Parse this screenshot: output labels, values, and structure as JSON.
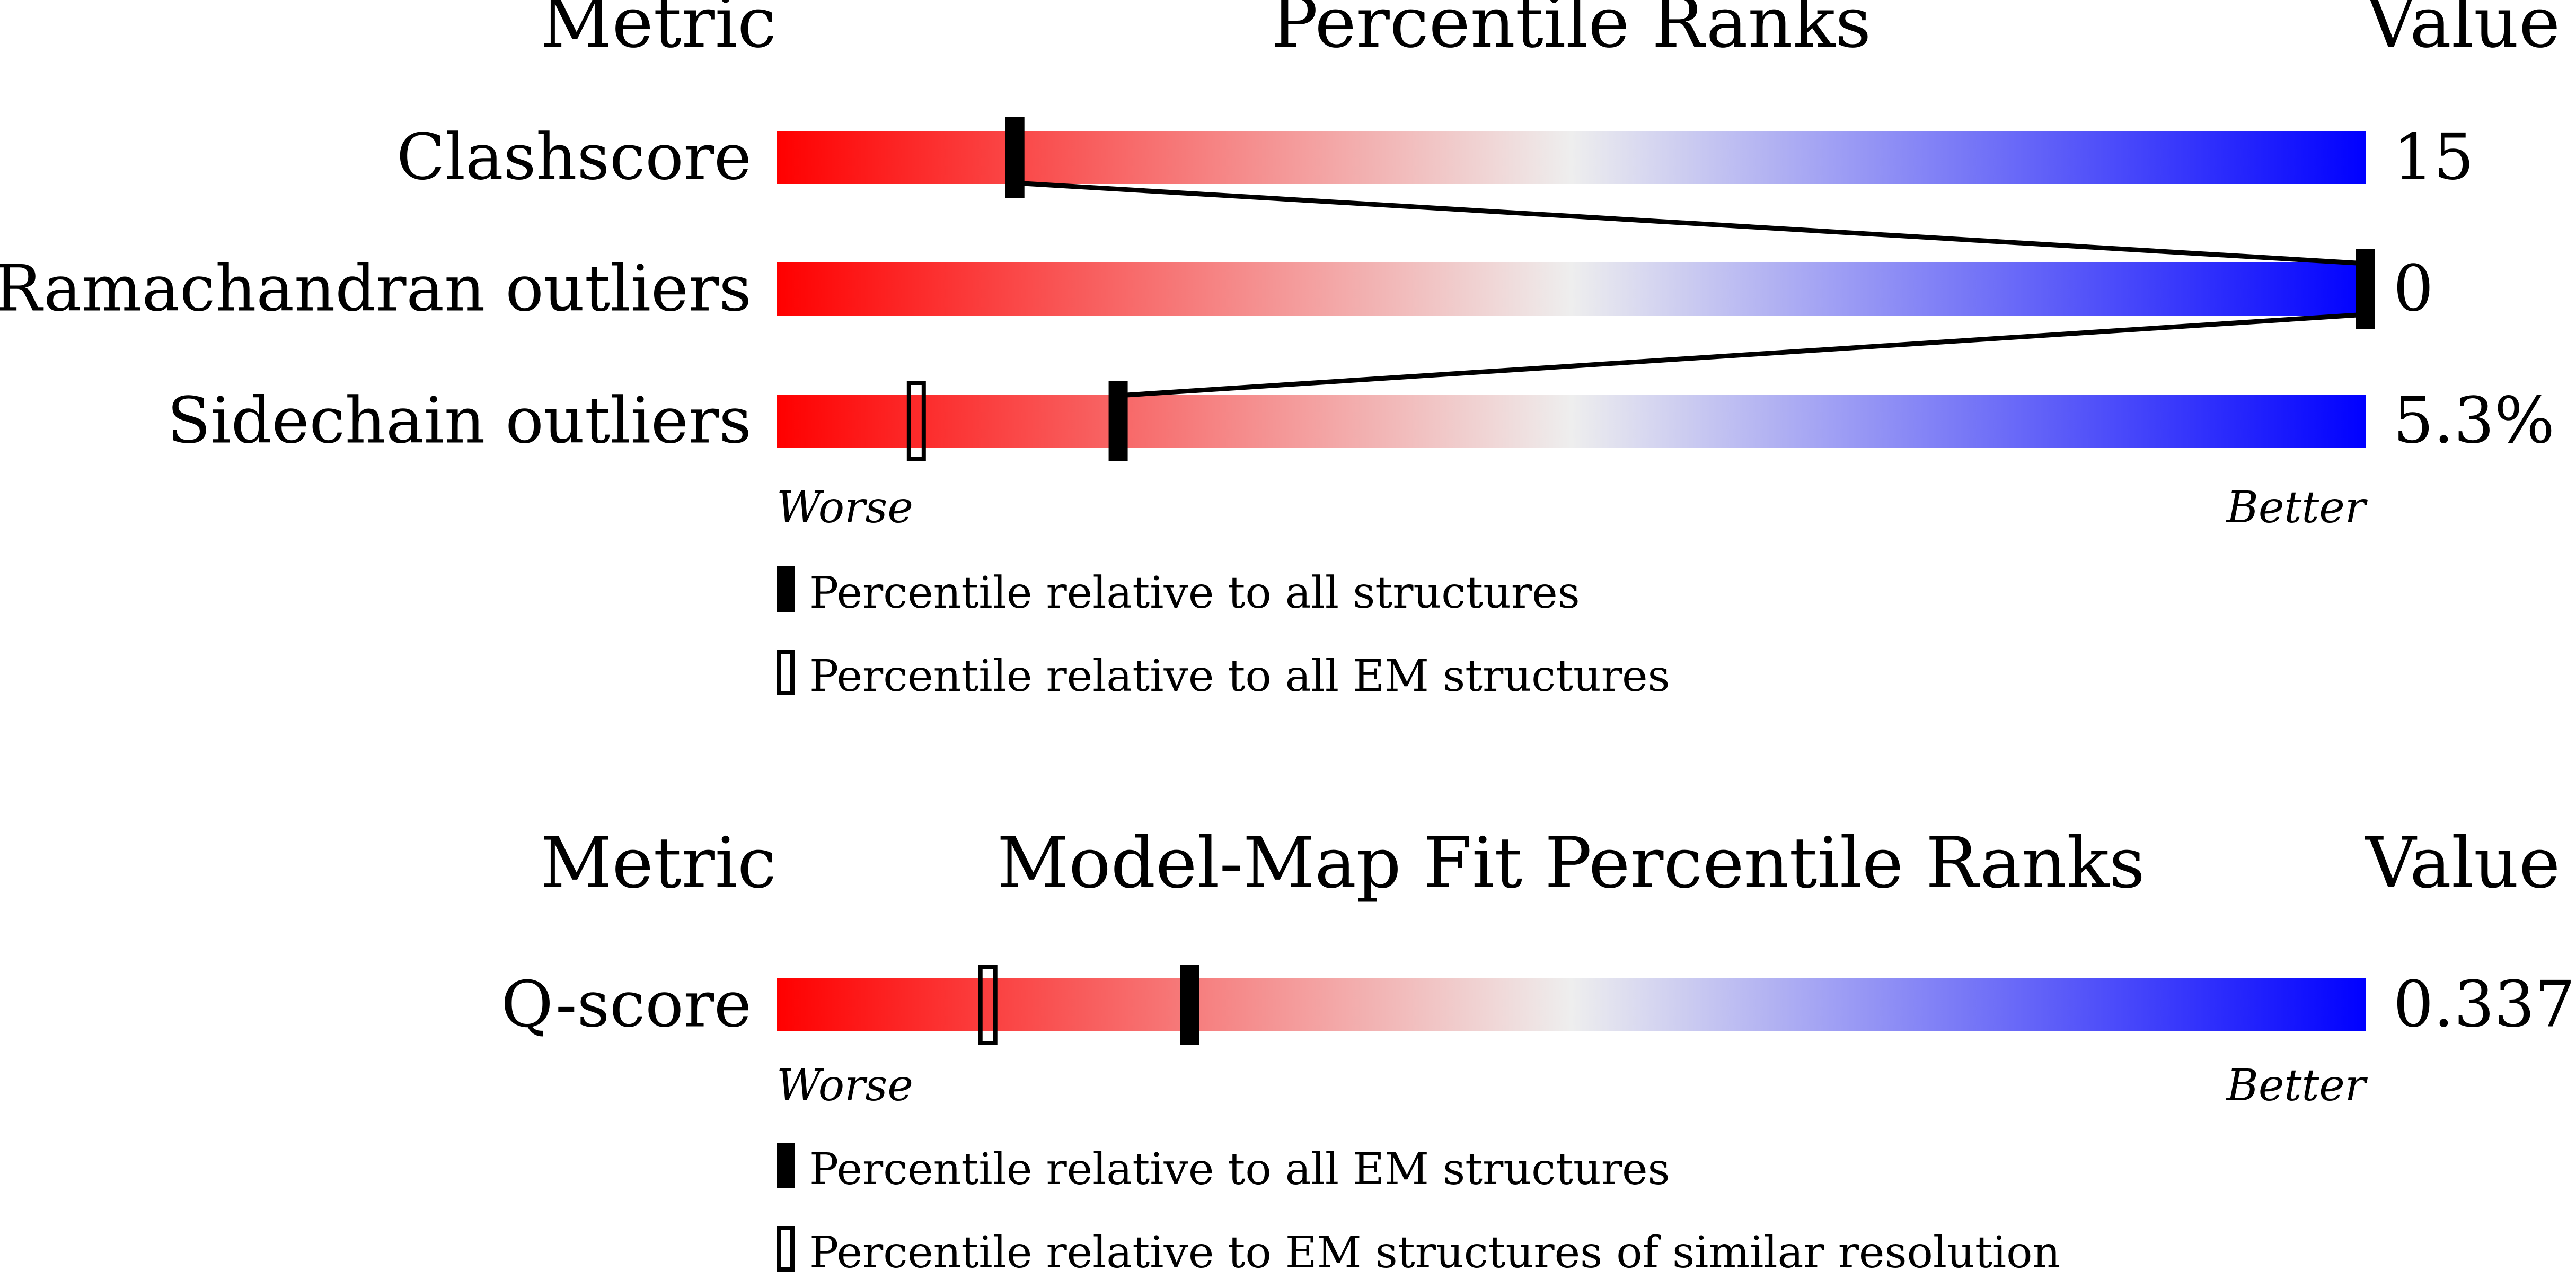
{
  "chart_data": [
    {
      "type": "bar",
      "headers": {
        "metric": "Metric",
        "title": "Percentile Ranks",
        "value": "Value"
      },
      "axis_ends": {
        "worse": "Worse",
        "better": "Better"
      },
      "xlim": [
        0,
        100
      ],
      "rows": [
        {
          "metric": "Clashscore",
          "value": "15",
          "percentile_all": 15,
          "percentile_em": null
        },
        {
          "metric": "Ramachandran outliers",
          "value": "0",
          "percentile_all": 100,
          "percentile_em": null
        },
        {
          "metric": "Sidechain outliers",
          "value": "5.3%",
          "percentile_all": 21.5,
          "percentile_em": 8.8
        }
      ],
      "legend": [
        {
          "marker": "filled",
          "label": "Percentile relative to all structures"
        },
        {
          "marker": "open",
          "label": "Percentile relative to all EM structures"
        }
      ]
    },
    {
      "type": "bar",
      "headers": {
        "metric": "Metric",
        "title": "Model-Map Fit Percentile Ranks",
        "value": "Value"
      },
      "axis_ends": {
        "worse": "Worse",
        "better": "Better"
      },
      "xlim": [
        0,
        100
      ],
      "rows": [
        {
          "metric": "Q-score",
          "value": "0.337",
          "percentile_all": 26,
          "percentile_em": 13.3
        }
      ],
      "legend": [
        {
          "marker": "filled",
          "label": "Percentile relative to all EM structures"
        },
        {
          "marker": "open",
          "label": "Percentile relative to EM structures of similar resolution"
        }
      ]
    }
  ],
  "colors": {
    "worse": "#ff0000",
    "middle": "#eeeeee",
    "better": "#0000ff",
    "marker": "#000000"
  }
}
